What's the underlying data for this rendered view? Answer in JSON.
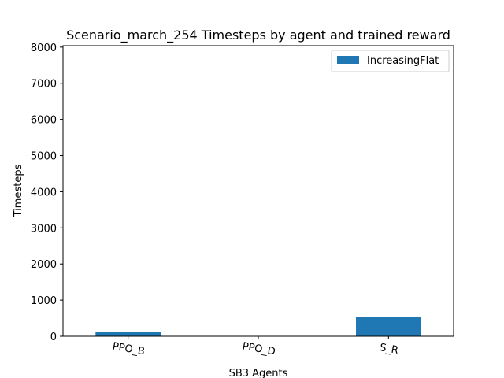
{
  "chart_data": {
    "type": "bar",
    "title": "Scenario_march_254 Timesteps by agent and trained reward",
    "xlabel": "SB3 Agents",
    "ylabel": "Timesteps",
    "categories": [
      "PPO_B",
      "PPO_D",
      "S_R"
    ],
    "series": [
      {
        "name": "IncreasingFlat",
        "values": [
          130,
          0,
          530
        ],
        "color": "#1f77b4"
      }
    ],
    "ylim": [
      0,
      8000
    ],
    "yticks": [
      0,
      1000,
      2000,
      3000,
      4000,
      5000,
      6000,
      7000,
      8000
    ],
    "grid": false,
    "legend_position": "top-right"
  }
}
